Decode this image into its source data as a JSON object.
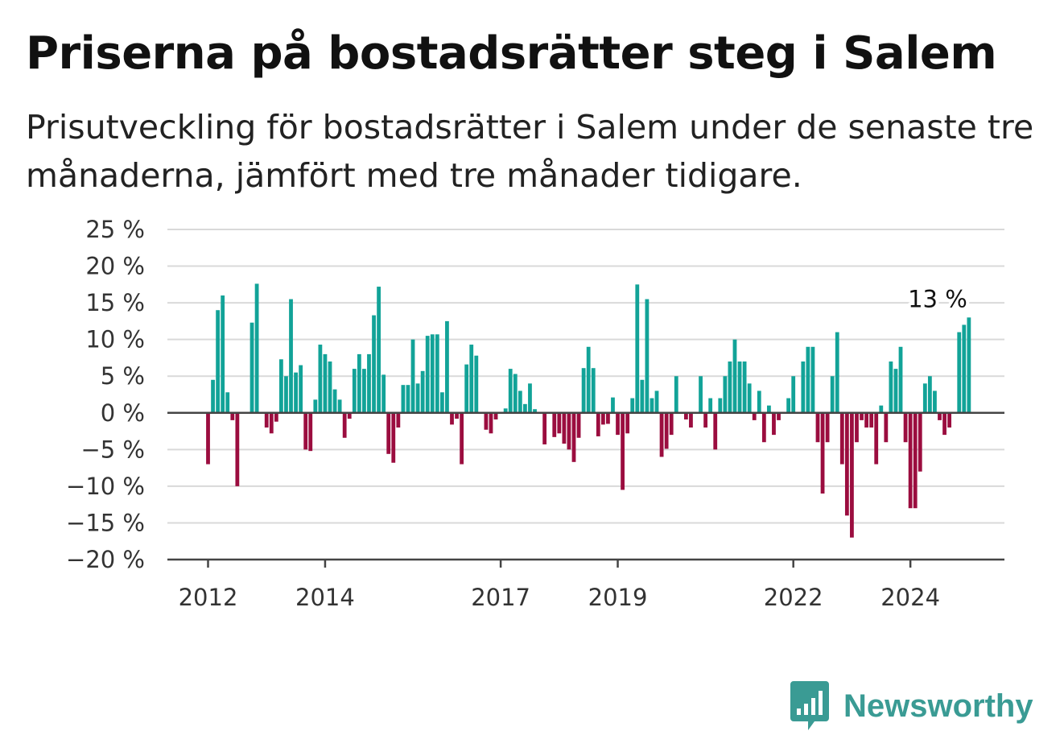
{
  "title": "Priserna på bostadsrätter steg i Salem",
  "subtitle": "Prisutveckling för bostadsrätter i Salem under de senaste tre månaderna, jämfört med tre månader tidigare.",
  "brand": {
    "name": "Newsworthy",
    "icon": "bar-chart-speech-bubble-icon"
  },
  "colors": {
    "positive": "#12a398",
    "negative": "#9b0d3f",
    "grid": "#d9d9d9",
    "axis": "#444444"
  },
  "chart_data": {
    "type": "bar",
    "x_start": "2011-10",
    "ylim": [
      -20,
      25
    ],
    "yticks": [
      {
        "value": 25,
        "label": "25 %"
      },
      {
        "value": 20,
        "label": "20 %"
      },
      {
        "value": 15,
        "label": "15 %"
      },
      {
        "value": 10,
        "label": "10 %"
      },
      {
        "value": 5,
        "label": "5 %"
      },
      {
        "value": 0,
        "label": "0 %"
      },
      {
        "value": -5,
        "label": "−5 %"
      },
      {
        "value": -10,
        "label": "−10 %"
      },
      {
        "value": -15,
        "label": "−15 %"
      },
      {
        "value": -20,
        "label": "−20 %"
      }
    ],
    "xticks": [
      {
        "date": "2012-01",
        "label": "2012"
      },
      {
        "date": "2014-01",
        "label": "2014"
      },
      {
        "date": "2017-01",
        "label": "2017"
      },
      {
        "date": "2019-01",
        "label": "2019"
      },
      {
        "date": "2022-01",
        "label": "2022"
      },
      {
        "date": "2024-01",
        "label": "2024"
      }
    ],
    "annotation": {
      "date": "2024-12",
      "label": "13 %"
    },
    "grid": true,
    "values": [
      0,
      0,
      0,
      -7,
      4.5,
      14,
      16,
      2.8,
      -1,
      -10,
      0,
      0,
      12.3,
      17.6,
      0,
      -2,
      -2.8,
      -1.2,
      7.3,
      5,
      15.5,
      5.5,
      6.5,
      -5,
      -5.2,
      1.8,
      9.3,
      8,
      7,
      3.2,
      1.8,
      -3.4,
      -0.8,
      6,
      8,
      6,
      8,
      13.3,
      17.2,
      5.2,
      -5.6,
      -6.8,
      -2,
      3.8,
      3.8,
      10,
      4,
      5.7,
      10.5,
      10.7,
      10.7,
      2.8,
      12.5,
      -1.6,
      -0.8,
      -7,
      6.6,
      9.3,
      7.8,
      0,
      -2.3,
      -2.8,
      -0.9,
      0,
      0.6,
      6,
      5.3,
      3,
      1.2,
      4,
      0.5,
      0,
      -4.3,
      0,
      -3.3,
      -2.8,
      -4.2,
      -5,
      -6.7,
      -3.4,
      6.1,
      9,
      6.1,
      -3.2,
      -1.6,
      -1.5,
      2.1,
      -3,
      -10.5,
      -2.8,
      2,
      17.5,
      4.5,
      15.5,
      2,
      3,
      -6,
      -4.9,
      -3,
      5,
      0,
      -0.9,
      -2,
      0,
      5,
      -2,
      2,
      -5,
      2,
      5,
      7,
      10,
      7,
      7,
      4,
      -1,
      3,
      -4,
      1,
      -3,
      -1,
      0,
      2,
      5,
      0,
      7,
      9,
      9,
      -4,
      -11,
      -4,
      5,
      11,
      -7,
      -14,
      -17,
      -4,
      -1,
      -2,
      -2,
      -7,
      1,
      -4,
      7,
      6,
      9,
      -4,
      -13,
      -13,
      -8,
      4,
      5,
      3,
      -1,
      -3,
      -2,
      0,
      11,
      12,
      13
    ]
  }
}
